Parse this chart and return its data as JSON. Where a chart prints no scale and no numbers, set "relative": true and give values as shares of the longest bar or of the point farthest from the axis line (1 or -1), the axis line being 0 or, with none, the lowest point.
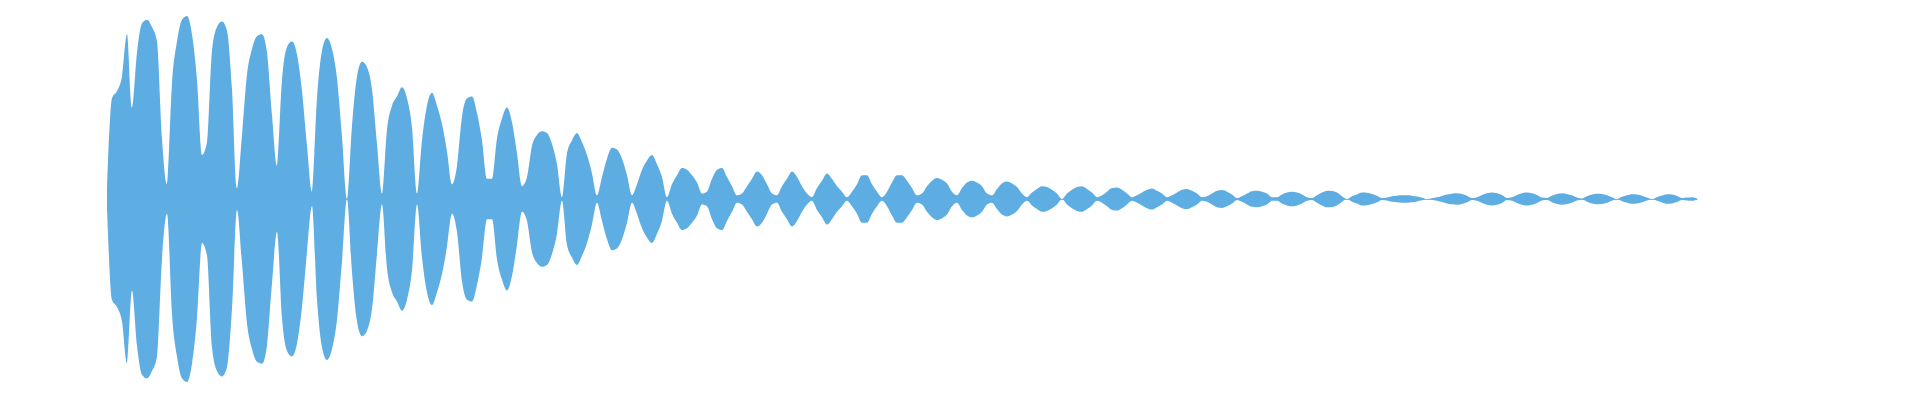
{
  "chart_data": {
    "type": "area",
    "relative": true,
    "categories": [
      null,
      null,
      null,
      null,
      null,
      null,
      null,
      null,
      null,
      null,
      null,
      null,
      null,
      null,
      null,
      null,
      null,
      null,
      null,
      null,
      null,
      null,
      null,
      null,
      null,
      null,
      null,
      null,
      null,
      null,
      null,
      null,
      null,
      null,
      null,
      null,
      null,
      null,
      null,
      null,
      null,
      null,
      null,
      null,
      null,
      null,
      null,
      null,
      null,
      null,
      null,
      null,
      null,
      null,
      null,
      null,
      null,
      null,
      null,
      null,
      null,
      null,
      null,
      null,
      null,
      null,
      null,
      null,
      null,
      null,
      null,
      null,
      null,
      null,
      null,
      null,
      null,
      null,
      null,
      null,
      null,
      null,
      null,
      null,
      null,
      null,
      null,
      null,
      null,
      null,
      null,
      null,
      null,
      null,
      null,
      null,
      null,
      null,
      null,
      null,
      null,
      null,
      null,
      null,
      null,
      null,
      null,
      null,
      null,
      null,
      null,
      null,
      null,
      null,
      null,
      null,
      null,
      null,
      null,
      null,
      null,
      null,
      null,
      null,
      null,
      null,
      null,
      null,
      null,
      null,
      null,
      null,
      null,
      null,
      null,
      null,
      null,
      null,
      null,
      null,
      null,
      null,
      null,
      null,
      null,
      null,
      null,
      null,
      null,
      null,
      null,
      null,
      null,
      null,
      null,
      null,
      null,
      null,
      null,
      null,
      null,
      null,
      null,
      null,
      null,
      null,
      null,
      null,
      null,
      null,
      null,
      null,
      null,
      null,
      null,
      null,
      null,
      null,
      null,
      null,
      null,
      null,
      null,
      null,
      null,
      null,
      null,
      null,
      null,
      null,
      null,
      null,
      null,
      null,
      null,
      null,
      null,
      null,
      null,
      null,
      null,
      null,
      null,
      null,
      null,
      null,
      null,
      null,
      null,
      null,
      null,
      null,
      null,
      null,
      null,
      null,
      null,
      null,
      null,
      null,
      null,
      null,
      null,
      null,
      null,
      null,
      null,
      null,
      null,
      null,
      null,
      null,
      null,
      null,
      null,
      null,
      null,
      null,
      null,
      null,
      null,
      null,
      null,
      null,
      null,
      null,
      null,
      null,
      null,
      null,
      null,
      null,
      null,
      null,
      null,
      null,
      null,
      null,
      null,
      null,
      null,
      null,
      null,
      null,
      null,
      null,
      null,
      null,
      null,
      null,
      null,
      null,
      null,
      null,
      null,
      null,
      null,
      null,
      null,
      null,
      null,
      null,
      null,
      null,
      null,
      null,
      null,
      null,
      null,
      null,
      null,
      null,
      null,
      null,
      null,
      null,
      null,
      null,
      null,
      null,
      null,
      null,
      null,
      null,
      null,
      null,
      null,
      null,
      null,
      null,
      null,
      null,
      null,
      null,
      null,
      null,
      null,
      null,
      null
    ],
    "series": [
      {
        "color": "#5dade2",
        "values": [
          0.05,
          0.55,
          0.59,
          0.67,
          0.9,
          0.5,
          0.8,
          0.96,
          0.98,
          0.94,
          0.86,
          0.33,
          0.08,
          0.63,
          0.86,
          0.98,
          1.0,
          0.9,
          0.65,
          0.24,
          0.31,
          0.81,
          0.94,
          0.97,
          0.92,
          0.6,
          0.06,
          0.35,
          0.68,
          0.82,
          0.89,
          0.9,
          0.8,
          0.46,
          0.18,
          0.65,
          0.83,
          0.86,
          0.79,
          0.59,
          0.29,
          0.04,
          0.55,
          0.81,
          0.88,
          0.82,
          0.66,
          0.34,
          0,
          0.4,
          0.67,
          0.75,
          0.72,
          0.6,
          0.3,
          0.03,
          0.38,
          0.51,
          0.56,
          0.61,
          0.55,
          0.39,
          0.03,
          0.32,
          0.51,
          0.58,
          0.51,
          0.41,
          0.26,
          0.08,
          0.18,
          0.45,
          0.55,
          0.56,
          0.47,
          0.32,
          0.11,
          0.11,
          0.33,
          0.44,
          0.5,
          0.42,
          0.25,
          0.07,
          0.12,
          0.29,
          0.35,
          0.37,
          0.36,
          0.3,
          0.19,
          0.01,
          0.25,
          0.32,
          0.36,
          0.31,
          0.24,
          0.14,
          0.02,
          0.12,
          0.22,
          0.28,
          0.27,
          0.22,
          0.13,
          0.02,
          0.08,
          0.16,
          0.21,
          0.24,
          0.19,
          0.12,
          0.01,
          0.08,
          0.13,
          0.17,
          0.16,
          0.13,
          0.09,
          0.03,
          0.04,
          0.11,
          0.16,
          0.17,
          0.12,
          0.07,
          0.02,
          0.03,
          0.07,
          0.11,
          0.15,
          0.13,
          0.08,
          0.03,
          0.02,
          0.07,
          0.11,
          0.15,
          0.12,
          0.07,
          0.03,
          0.01,
          0.06,
          0.1,
          0.14,
          0.11,
          0.07,
          0.04,
          0.01,
          0.04,
          0.08,
          0.13,
          0.13,
          0.08,
          0.04,
          0.01,
          0.04,
          0.09,
          0.13,
          0.13,
          0.1,
          0.06,
          0.02,
          0.03,
          0.07,
          0.1,
          0.115,
          0.105,
          0.085,
          0.04,
          0.02,
          0.06,
          0.09,
          0.1,
          0.09,
          0.07,
          0.03,
          0.02,
          0.055,
          0.085,
          0.095,
          0.085,
          0.065,
          0.03,
          0.01,
          0.035,
          0.055,
          0.07,
          0.065,
          0.05,
          0.03,
          0,
          0.03,
          0.05,
          0.065,
          0.07,
          0.055,
          0.035,
          0.01,
          0.02,
          0.04,
          0.06,
          0.063,
          0.05,
          0.03,
          0.01,
          0.02,
          0.035,
          0.05,
          0.058,
          0.045,
          0.03,
          0.01,
          0.02,
          0.035,
          0.05,
          0.055,
          0.045,
          0.03,
          0.01,
          0.015,
          0.03,
          0.045,
          0.049,
          0.04,
          0.025,
          0.005,
          0.015,
          0.03,
          0.043,
          0.045,
          0.04,
          0.03,
          0.01,
          0.01,
          0.025,
          0.035,
          0.04,
          0.035,
          0.025,
          0.01,
          0.005,
          0.02,
          0.035,
          0.045,
          0.044,
          0.035,
          0.015,
          0,
          0.015,
          0.025,
          0.035,
          0.034,
          0.028,
          0.018,
          0.005,
          0.008,
          0.015,
          0.018,
          0.02,
          0.02,
          0.018,
          0.013,
          0.007,
          0,
          0.004,
          0.01,
          0.017,
          0.024,
          0.029,
          0.031,
          0.027,
          0.018,
          0.005,
          0.01,
          0.022,
          0.032,
          0.036,
          0.032,
          0.022,
          0.006,
          0.01,
          0.022,
          0.032,
          0.036,
          0.032,
          0.022,
          0.008,
          0.006,
          0.018,
          0.027,
          0.031,
          0.028,
          0.02,
          0.008,
          0.003,
          0.015,
          0.024,
          0.029,
          0.027,
          0.02,
          0.01,
          0,
          0.012,
          0.02,
          0.026,
          0.025,
          0.018,
          0.008,
          0,
          0.01,
          0.019,
          0.026,
          0.024,
          0.017,
          0.006,
          0.008,
          0.01,
          0.003
        ]
      },
      {
        "color": "#5eaee3",
        "values": [
          -0.05,
          -0.55,
          -0.59,
          -0.67,
          -0.9,
          -0.5,
          -0.8,
          -0.96,
          -0.98,
          -0.94,
          -0.86,
          -0.33,
          -0.08,
          -0.63,
          -0.86,
          -0.98,
          -1.0,
          -0.9,
          -0.65,
          -0.24,
          -0.31,
          -0.81,
          -0.94,
          -0.97,
          -0.92,
          -0.6,
          -0.06,
          -0.35,
          -0.68,
          -0.82,
          -0.89,
          -0.9,
          -0.8,
          -0.46,
          -0.18,
          -0.65,
          -0.83,
          -0.86,
          -0.79,
          -0.59,
          -0.29,
          -0.04,
          -0.55,
          -0.81,
          -0.88,
          -0.82,
          -0.66,
          -0.34,
          0,
          -0.4,
          -0.67,
          -0.75,
          -0.72,
          -0.6,
          -0.3,
          -0.03,
          -0.38,
          -0.51,
          -0.56,
          -0.61,
          -0.55,
          -0.39,
          -0.03,
          -0.32,
          -0.51,
          -0.58,
          -0.51,
          -0.41,
          -0.26,
          -0.08,
          -0.18,
          -0.45,
          -0.55,
          -0.56,
          -0.47,
          -0.32,
          -0.11,
          -0.11,
          -0.33,
          -0.44,
          -0.5,
          -0.42,
          -0.25,
          -0.07,
          -0.12,
          -0.29,
          -0.35,
          -0.37,
          -0.36,
          -0.3,
          -0.19,
          -0.01,
          -0.25,
          -0.32,
          -0.36,
          -0.31,
          -0.24,
          -0.14,
          -0.02,
          -0.12,
          -0.22,
          -0.28,
          -0.27,
          -0.22,
          -0.13,
          -0.02,
          -0.08,
          -0.16,
          -0.21,
          -0.24,
          -0.19,
          -0.12,
          -0.01,
          -0.08,
          -0.13,
          -0.17,
          -0.16,
          -0.13,
          -0.09,
          -0.03,
          -0.04,
          -0.11,
          -0.16,
          -0.17,
          -0.12,
          -0.07,
          -0.02,
          -0.03,
          -0.07,
          -0.11,
          -0.15,
          -0.13,
          -0.08,
          -0.03,
          -0.02,
          -0.07,
          -0.11,
          -0.15,
          -0.12,
          -0.07,
          -0.03,
          -0.01,
          -0.06,
          -0.1,
          -0.14,
          -0.11,
          -0.07,
          -0.04,
          -0.01,
          -0.04,
          -0.08,
          -0.13,
          -0.13,
          -0.08,
          -0.04,
          -0.01,
          -0.04,
          -0.09,
          -0.13,
          -0.13,
          -0.1,
          -0.06,
          -0.02,
          -0.03,
          -0.07,
          -0.1,
          -0.115,
          -0.105,
          -0.085,
          -0.04,
          -0.02,
          -0.06,
          -0.09,
          -0.1,
          -0.09,
          -0.07,
          -0.03,
          -0.02,
          -0.055,
          -0.085,
          -0.095,
          -0.085,
          -0.065,
          -0.03,
          -0.01,
          -0.035,
          -0.055,
          -0.07,
          -0.065,
          -0.05,
          -0.03,
          0,
          -0.03,
          -0.05,
          -0.065,
          -0.07,
          -0.055,
          -0.035,
          -0.01,
          -0.02,
          -0.04,
          -0.06,
          -0.063,
          -0.05,
          -0.03,
          -0.01,
          -0.02,
          -0.035,
          -0.05,
          -0.058,
          -0.045,
          -0.03,
          -0.01,
          -0.02,
          -0.035,
          -0.05,
          -0.055,
          -0.045,
          -0.03,
          -0.01,
          -0.015,
          -0.03,
          -0.045,
          -0.049,
          -0.04,
          -0.025,
          -0.005,
          -0.015,
          -0.03,
          -0.043,
          -0.045,
          -0.04,
          -0.03,
          -0.01,
          -0.01,
          -0.025,
          -0.035,
          -0.04,
          -0.035,
          -0.025,
          -0.01,
          -0.005,
          -0.02,
          -0.035,
          -0.045,
          -0.044,
          -0.035,
          -0.015,
          0,
          -0.015,
          -0.025,
          -0.035,
          -0.034,
          -0.028,
          -0.018,
          -0.005,
          -0.008,
          -0.015,
          -0.018,
          -0.02,
          -0.02,
          -0.018,
          -0.013,
          -0.007,
          0,
          -0.004,
          -0.01,
          -0.017,
          -0.024,
          -0.029,
          -0.031,
          -0.027,
          -0.018,
          -0.005,
          -0.01,
          -0.022,
          -0.032,
          -0.036,
          -0.032,
          -0.022,
          -0.006,
          -0.01,
          -0.022,
          -0.032,
          -0.036,
          -0.032,
          -0.022,
          -0.008,
          -0.006,
          -0.018,
          -0.027,
          -0.031,
          -0.028,
          -0.02,
          -0.008,
          -0.003,
          -0.015,
          -0.024,
          -0.029,
          -0.027,
          -0.02,
          -0.01,
          0,
          -0.012,
          -0.02,
          -0.026,
          -0.025,
          -0.018,
          -0.008,
          0,
          -0.01,
          -0.019,
          -0.026,
          -0.024,
          -0.017,
          -0.006,
          -0.008,
          -0.01,
          -0.003
        ]
      }
    ]
  }
}
